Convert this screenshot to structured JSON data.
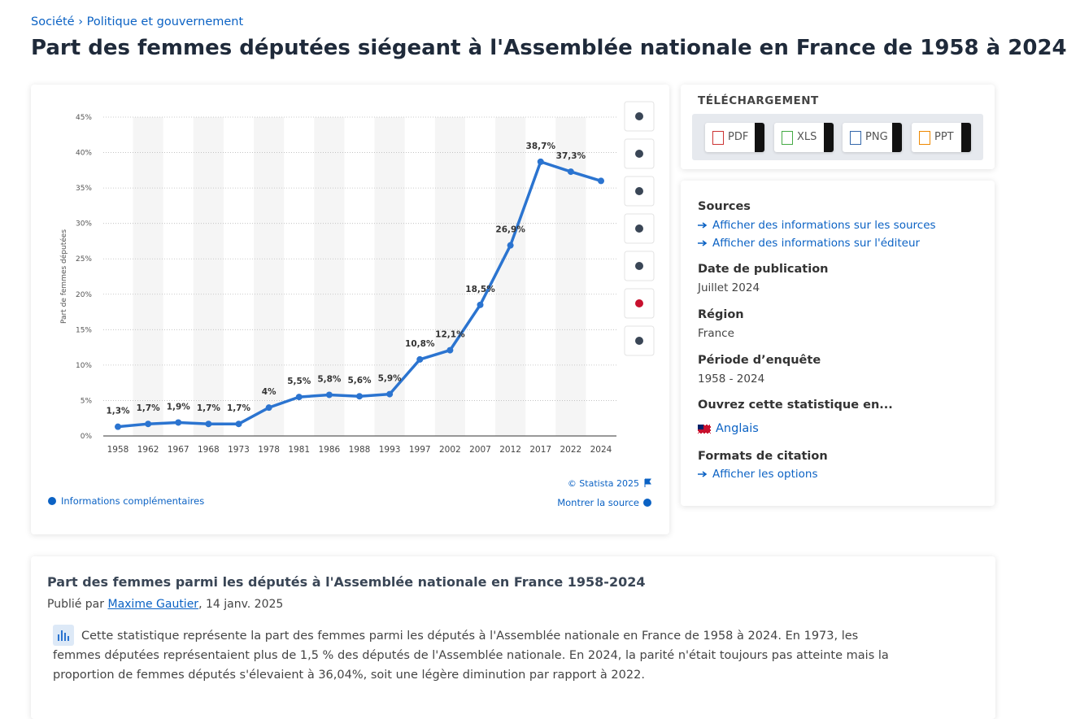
{
  "breadcrumb": {
    "items": [
      "Société",
      "Politique et gouvernement"
    ],
    "separator": "›"
  },
  "title": "Part des femmes députées siégeant à l'Assemblée nationale en France de 1958 à 2024",
  "chart_data": {
    "type": "line",
    "y_label": "Part de femmes députées",
    "categories": [
      "1958",
      "1962",
      "1967",
      "1968",
      "1973",
      "1978",
      "1981",
      "1986",
      "1988",
      "1993",
      "1997",
      "2002",
      "2007",
      "2012",
      "2017",
      "2022",
      "2024"
    ],
    "series": [
      {
        "name": "Part de femmes députées",
        "color": "#2b74d0",
        "values": [
          1.3,
          1.7,
          1.9,
          1.7,
          1.7,
          4,
          5.5,
          5.8,
          5.6,
          5.9,
          10.8,
          12.1,
          18.5,
          26.9,
          38.7,
          37.3,
          36
        ],
        "value_labels": [
          "1,3%",
          "1,7%",
          "1,9%",
          "1,7%",
          "1,7%",
          "4%",
          "5,5%",
          "5,8%",
          "5,6%",
          "5,9%",
          "10,8%",
          "12,1%",
          "18,5%",
          "26,9%",
          "38,7%",
          "37,3%",
          null
        ]
      }
    ],
    "ylim": [
      0,
      45
    ],
    "yticks": [
      {
        "value": 0,
        "label": "0%"
      },
      {
        "value": 5,
        "label": "5%"
      },
      {
        "value": 10,
        "label": "10%"
      },
      {
        "value": 15,
        "label": "15%"
      },
      {
        "value": 20,
        "label": "20%"
      },
      {
        "value": 25,
        "label": "25%"
      },
      {
        "value": 30,
        "label": "30%"
      },
      {
        "value": 35,
        "label": "35%"
      },
      {
        "value": 40,
        "label": "40%"
      },
      {
        "value": 45,
        "label": "45%"
      }
    ],
    "grid": true,
    "alternate_bands": true
  },
  "chart_footer": {
    "copyright": "© Statista 2025",
    "more_info": "Informations complémentaires",
    "show_source": "Montrer la source"
  },
  "download": {
    "title": "TÉLÉCHARGEMENT",
    "formats": [
      "PDF",
      "XLS",
      "PNG",
      "PPT"
    ]
  },
  "details": {
    "sources": {
      "heading": "Sources",
      "links": [
        "Afficher des informations sur les sources",
        "Afficher des informations sur l'éditeur"
      ]
    },
    "publication": {
      "heading": "Date de publication",
      "value": "Juillet 2024"
    },
    "region": {
      "heading": "Région",
      "value": "France"
    },
    "period": {
      "heading": "Période d’enquête",
      "value": "1958 - 2024"
    },
    "open_in": {
      "heading": "Ouvrez cette statistique en...",
      "language": "Anglais"
    },
    "citation": {
      "heading": "Formats de citation",
      "link": "Afficher les options"
    }
  },
  "article": {
    "title": "Part des femmes parmi les députés à l'Assemblée nationale en France 1958-2024",
    "published_prefix": "Publié par",
    "author": "Maxime Gautier",
    "date": ", 14 janv. 2025",
    "text": "Cette statistique représente la part des femmes parmi les députés à l'Assemblée nationale en France de 1958 à 2024. En 1973, les femmes députées représentaient plus de 1,5 % des députés de l'Assemblée nationale. En 2024, la parité n'était toujours pas atteinte mais la proportion de femmes députés s'élevaient à 36,04%, soit une légère diminution par rapport à 2022."
  }
}
